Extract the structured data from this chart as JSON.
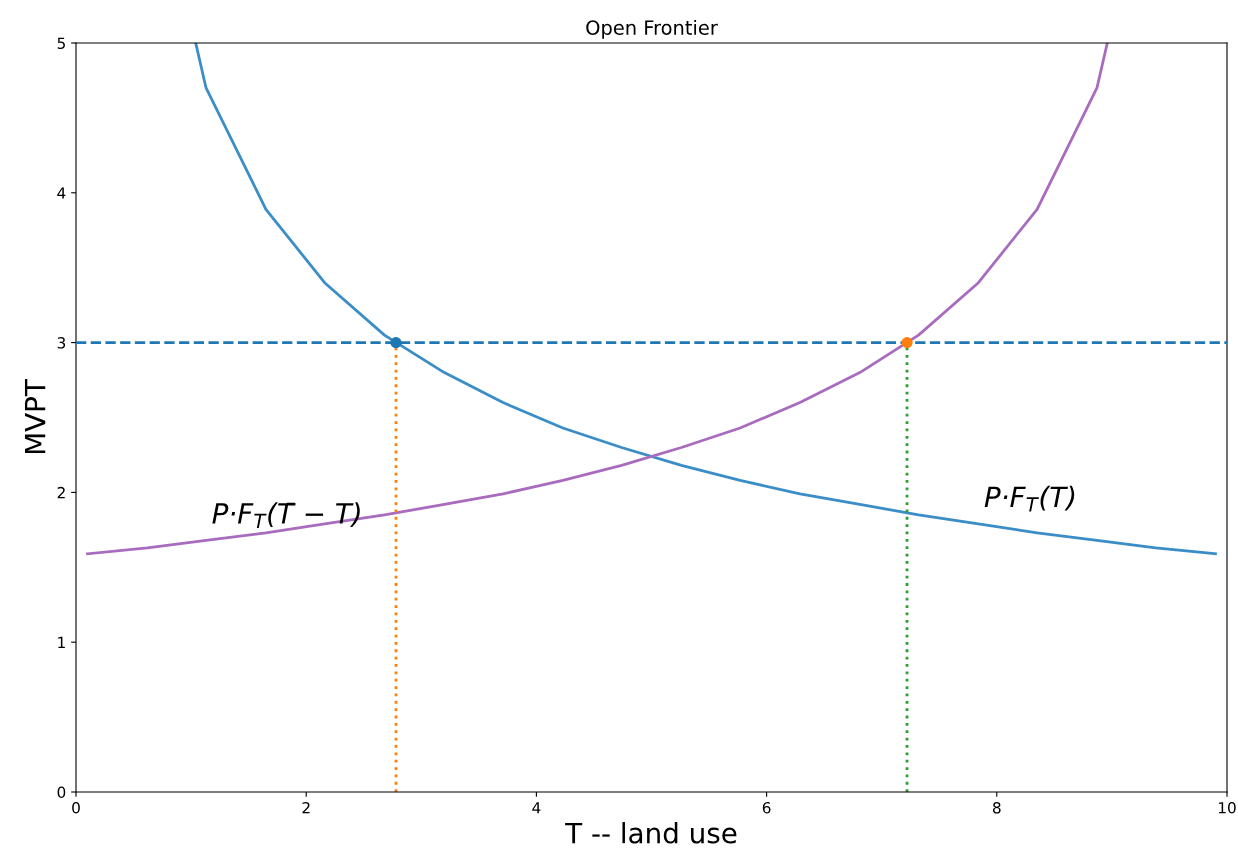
{
  "chart_data": {
    "type": "line",
    "title": "Open Frontier",
    "xlabel": "T -- land use",
    "ylabel": "MVPT",
    "xlim": [
      0,
      10
    ],
    "ylim": [
      0,
      5
    ],
    "xticks": [
      0,
      2,
      4,
      6,
      8,
      10
    ],
    "yticks": [
      0,
      1,
      2,
      3,
      4,
      5
    ],
    "grid": false,
    "legend": false,
    "series": [
      {
        "name": "P·F$_{T}$(T)",
        "color": "#3a8dc6",
        "line_style": "solid",
        "marker": "none",
        "x": [
          1.04,
          1.13,
          1.65,
          2.16,
          2.68,
          3.2,
          3.71,
          4.23,
          4.74,
          5.26,
          5.77,
          6.29,
          6.81,
          7.32,
          7.84,
          8.35,
          8.87,
          9.38,
          9.9
        ],
        "values": [
          5.0,
          4.7,
          3.89,
          3.4,
          3.05,
          2.8,
          2.6,
          2.43,
          2.3,
          2.18,
          2.08,
          1.99,
          1.92,
          1.85,
          1.79,
          1.73,
          1.68,
          1.63,
          1.59
        ]
      },
      {
        "name": "P·F$_{T}$(T̄ − T)",
        "color": "#a86bbd",
        "line_style": "solid",
        "marker": "none",
        "x": [
          0.1,
          0.62,
          1.13,
          1.65,
          2.16,
          2.68,
          3.2,
          3.71,
          4.23,
          4.74,
          5.26,
          5.77,
          6.29,
          6.81,
          7.32,
          7.84,
          8.35,
          8.87,
          8.96
        ],
        "values": [
          1.59,
          1.63,
          1.68,
          1.73,
          1.79,
          1.85,
          1.92,
          1.99,
          2.08,
          2.18,
          2.3,
          2.43,
          2.6,
          2.8,
          3.05,
          3.4,
          3.89,
          4.7,
          5.0
        ]
      },
      {
        "color": "#ff7f0e",
        "line_style": "dotted",
        "marker": "none",
        "x": [
          2.78,
          2.78
        ],
        "values": [
          0,
          3
        ]
      },
      {
        "color": "#2ca02c",
        "line_style": "dotted",
        "marker": "none",
        "x": [
          7.22,
          7.22
        ],
        "values": [
          0,
          3
        ]
      },
      {
        "type": "scatter",
        "color": "#1f77b4",
        "marker": "circle",
        "x": [
          2.78
        ],
        "values": [
          3
        ]
      },
      {
        "type": "scatter",
        "color": "#ff7f0e",
        "marker": "circle",
        "x": [
          7.22
        ],
        "values": [
          3
        ]
      }
    ],
    "ref_lines": [
      {
        "axis": "y",
        "value": 3,
        "label": null,
        "color": "#1f77b4",
        "line_style": "dashed"
      }
    ]
  }
}
